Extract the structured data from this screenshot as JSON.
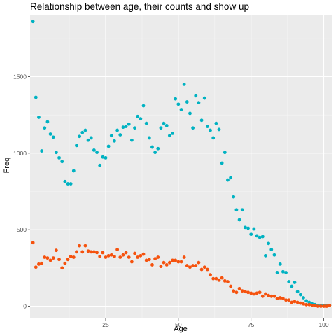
{
  "chart_data": {
    "type": "scatter",
    "title": "Relationship between age, their counts and show up",
    "xlabel": "Age",
    "ylabel": "Freq",
    "xlim": [
      -1,
      103
    ],
    "ylim": [
      -80,
      1900
    ],
    "x_ticks": [
      25,
      50,
      75,
      100
    ],
    "y_ticks": [
      0,
      500,
      1000,
      1500
    ],
    "x_tick_labels": [
      "25",
      "50",
      "75",
      "100"
    ],
    "y_tick_labels": [
      "0",
      "500",
      "1000",
      "1500"
    ],
    "grid": true,
    "legend": "none",
    "series": [
      {
        "color": "#00b2c2",
        "x": [
          0,
          1,
          2,
          3,
          4,
          5,
          6,
          7,
          8,
          9,
          10,
          11,
          12,
          13,
          14,
          15,
          16,
          17,
          18,
          19,
          20,
          21,
          22,
          23,
          24,
          25,
          26,
          27,
          28,
          29,
          30,
          31,
          32,
          33,
          34,
          35,
          36,
          37,
          38,
          39,
          40,
          41,
          42,
          43,
          44,
          45,
          46,
          47,
          48,
          49,
          50,
          51,
          52,
          53,
          54,
          55,
          56,
          57,
          58,
          59,
          60,
          61,
          62,
          63,
          64,
          65,
          66,
          67,
          68,
          69,
          70,
          71,
          72,
          73,
          74,
          75,
          76,
          77,
          78,
          79,
          80,
          81,
          82,
          83,
          84,
          85,
          86,
          87,
          88,
          89,
          90,
          91,
          92,
          93,
          94,
          95,
          96,
          97,
          98,
          99,
          100,
          101,
          102
        ],
        "y": [
          1860,
          1365,
          1235,
          1015,
          1165,
          1205,
          1125,
          1105,
          1005,
          970,
          945,
          815,
          800,
          800,
          885,
          1050,
          1110,
          1135,
          1150,
          1085,
          1100,
          1020,
          1005,
          920,
          975,
          970,
          1045,
          1115,
          1080,
          1150,
          1120,
          1170,
          1175,
          1190,
          1085,
          1165,
          1240,
          1225,
          1310,
          1195,
          1100,
          1040,
          1005,
          1030,
          1165,
          1195,
          1180,
          1115,
          1130,
          1355,
          1320,
          1285,
          1450,
          1335,
          1260,
          1165,
          1375,
          1330,
          1215,
          1360,
          1175,
          1150,
          1100,
          1195,
          1155,
          935,
          1005,
          825,
          840,
          715,
          630,
          565,
          630,
          515,
          510,
          470,
          505,
          460,
          450,
          455,
          330,
          410,
          370,
          335,
          220,
          275,
          225,
          220,
          160,
          130,
          155,
          95,
          75,
          55,
          35,
          25,
          15,
          10,
          5,
          5,
          5,
          5,
          5
        ]
      },
      {
        "color": "#f5520e",
        "x": [
          0,
          1,
          2,
          3,
          4,
          5,
          6,
          7,
          8,
          9,
          10,
          11,
          12,
          13,
          14,
          15,
          16,
          17,
          18,
          19,
          20,
          21,
          22,
          23,
          24,
          25,
          26,
          27,
          28,
          29,
          30,
          31,
          32,
          33,
          34,
          35,
          36,
          37,
          38,
          39,
          40,
          41,
          42,
          43,
          44,
          45,
          46,
          47,
          48,
          49,
          50,
          51,
          52,
          53,
          54,
          55,
          56,
          57,
          58,
          59,
          60,
          61,
          62,
          63,
          64,
          65,
          66,
          67,
          68,
          69,
          70,
          71,
          72,
          73,
          74,
          75,
          76,
          77,
          78,
          79,
          80,
          81,
          82,
          83,
          84,
          85,
          86,
          87,
          88,
          89,
          90,
          91,
          92,
          93,
          94,
          95,
          96,
          97,
          98,
          99,
          100,
          101,
          102
        ],
        "y": [
          415,
          255,
          275,
          280,
          320,
          315,
          300,
          315,
          365,
          305,
          250,
          280,
          305,
          325,
          320,
          355,
          395,
          355,
          395,
          360,
          355,
          355,
          350,
          325,
          350,
          320,
          330,
          335,
          325,
          370,
          320,
          335,
          350,
          320,
          290,
          345,
          320,
          330,
          340,
          300,
          305,
          270,
          310,
          320,
          260,
          285,
          270,
          285,
          300,
          300,
          290,
          290,
          320,
          265,
          255,
          265,
          265,
          285,
          240,
          255,
          240,
          205,
          180,
          180,
          170,
          185,
          165,
          160,
          130,
          100,
          90,
          115,
          100,
          95,
          90,
          85,
          80,
          85,
          90,
          65,
          80,
          70,
          65,
          65,
          50,
          55,
          50,
          40,
          40,
          25,
          30,
          25,
          20,
          15,
          10,
          10,
          5,
          5,
          0,
          0,
          0,
          0,
          5
        ]
      }
    ]
  }
}
